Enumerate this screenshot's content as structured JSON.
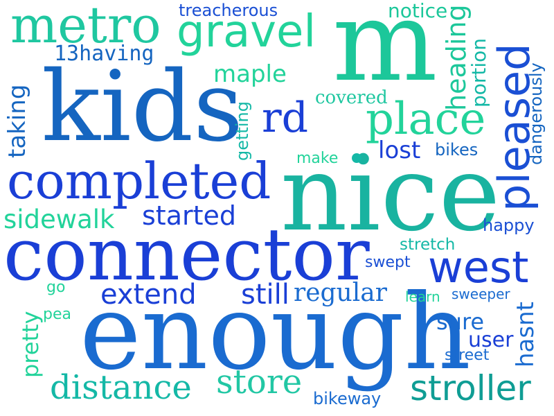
{
  "palette": {
    "blue_dark": "#1a3fd6",
    "blue_mid": "#1565c0",
    "blue": "#1e4fd8",
    "teal": "#14b8a6",
    "green": "#22d39a",
    "teal_dark": "#0aa39a",
    "background": "#ffffff"
  },
  "words": [
    {
      "text": "nice"
    },
    {
      "text": "enough"
    },
    {
      "text": "connector"
    },
    {
      "text": "kids"
    },
    {
      "text": "m"
    },
    {
      "text": "completed"
    },
    {
      "text": "metro"
    },
    {
      "text": "gravel"
    },
    {
      "text": "place"
    },
    {
      "text": "pleased"
    },
    {
      "text": "west"
    },
    {
      "text": "rd"
    },
    {
      "text": "stroller"
    },
    {
      "text": "distance"
    },
    {
      "text": "store"
    },
    {
      "text": "sidewalk"
    },
    {
      "text": "started"
    },
    {
      "text": "extend"
    },
    {
      "text": "still"
    },
    {
      "text": "regular"
    },
    {
      "text": "treacherous"
    },
    {
      "text": "notice"
    },
    {
      "text": "13having"
    },
    {
      "text": "maple"
    },
    {
      "text": "heading"
    },
    {
      "text": "portion"
    },
    {
      "text": "dangerously"
    },
    {
      "text": "covered"
    },
    {
      "text": "getting"
    },
    {
      "text": "taking"
    },
    {
      "text": "lost"
    },
    {
      "text": "bikes"
    },
    {
      "text": "make"
    },
    {
      "text": "happy"
    },
    {
      "text": "stretch"
    },
    {
      "text": "swept"
    },
    {
      "text": "learn"
    },
    {
      "text": "sweeper"
    },
    {
      "text": "sure"
    },
    {
      "text": "user"
    },
    {
      "text": "street"
    },
    {
      "text": "hasnt"
    },
    {
      "text": "pretty"
    },
    {
      "text": "go"
    },
    {
      "text": "pea"
    },
    {
      "text": "bikeway"
    }
  ]
}
